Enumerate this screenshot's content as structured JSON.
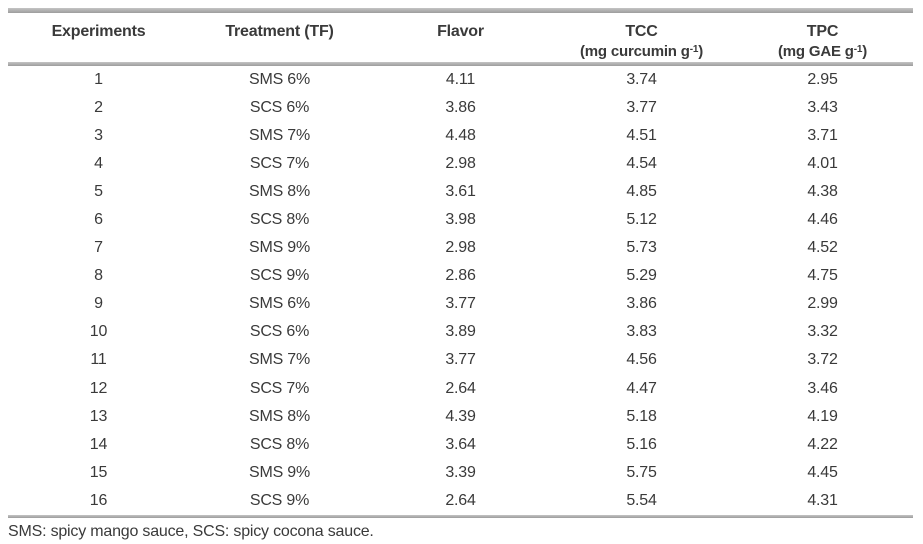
{
  "colors": {
    "rule_gray": "#a9a9a9",
    "text": "#3a3a3a",
    "background": "#ffffff"
  },
  "table": {
    "columns": [
      {
        "title": "Experiments",
        "unit_pre": "",
        "unit_sup": "",
        "unit_post": ""
      },
      {
        "title": "Treatment (TF)",
        "unit_pre": "",
        "unit_sup": "",
        "unit_post": ""
      },
      {
        "title": "Flavor",
        "unit_pre": "",
        "unit_sup": "",
        "unit_post": ""
      },
      {
        "title": "TCC",
        "unit_pre": "(mg curcumin g",
        "unit_sup": "-1",
        "unit_post": ")"
      },
      {
        "title": "TPC",
        "unit_pre": "(mg GAE g",
        "unit_sup": "-1",
        "unit_post": ")"
      }
    ],
    "rows": [
      [
        "1",
        "SMS 6%",
        "4.11",
        "3.74",
        "2.95"
      ],
      [
        "2",
        "SCS 6%",
        "3.86",
        "3.77",
        "3.43"
      ],
      [
        "3",
        "SMS 7%",
        "4.48",
        "4.51",
        "3.71"
      ],
      [
        "4",
        "SCS 7%",
        "2.98",
        "4.54",
        "4.01"
      ],
      [
        "5",
        "SMS 8%",
        "3.61",
        "4.85",
        "4.38"
      ],
      [
        "6",
        "SCS 8%",
        "3.98",
        "5.12",
        "4.46"
      ],
      [
        "7",
        "SMS 9%",
        "2.98",
        "5.73",
        "4.52"
      ],
      [
        "8",
        "SCS 9%",
        "2.86",
        "5.29",
        "4.75"
      ],
      [
        "9",
        "SMS 6%",
        "3.77",
        "3.86",
        "2.99"
      ],
      [
        "10",
        "SCS 6%",
        "3.89",
        "3.83",
        "3.32"
      ],
      [
        "11",
        "SMS 7%",
        "3.77",
        "4.56",
        "3.72"
      ],
      [
        "12",
        "SCS 7%",
        "2.64",
        "4.47",
        "3.46"
      ],
      [
        "13",
        "SMS 8%",
        "4.39",
        "5.18",
        "4.19"
      ],
      [
        "14",
        "SCS 8%",
        "3.64",
        "5.16",
        "4.22"
      ],
      [
        "15",
        "SMS 9%",
        "3.39",
        "5.75",
        "4.45"
      ],
      [
        "16",
        "SCS 9%",
        "2.64",
        "5.54",
        "4.31"
      ]
    ],
    "footnote": "SMS: spicy mango sauce, SCS: spicy cocona sauce."
  }
}
